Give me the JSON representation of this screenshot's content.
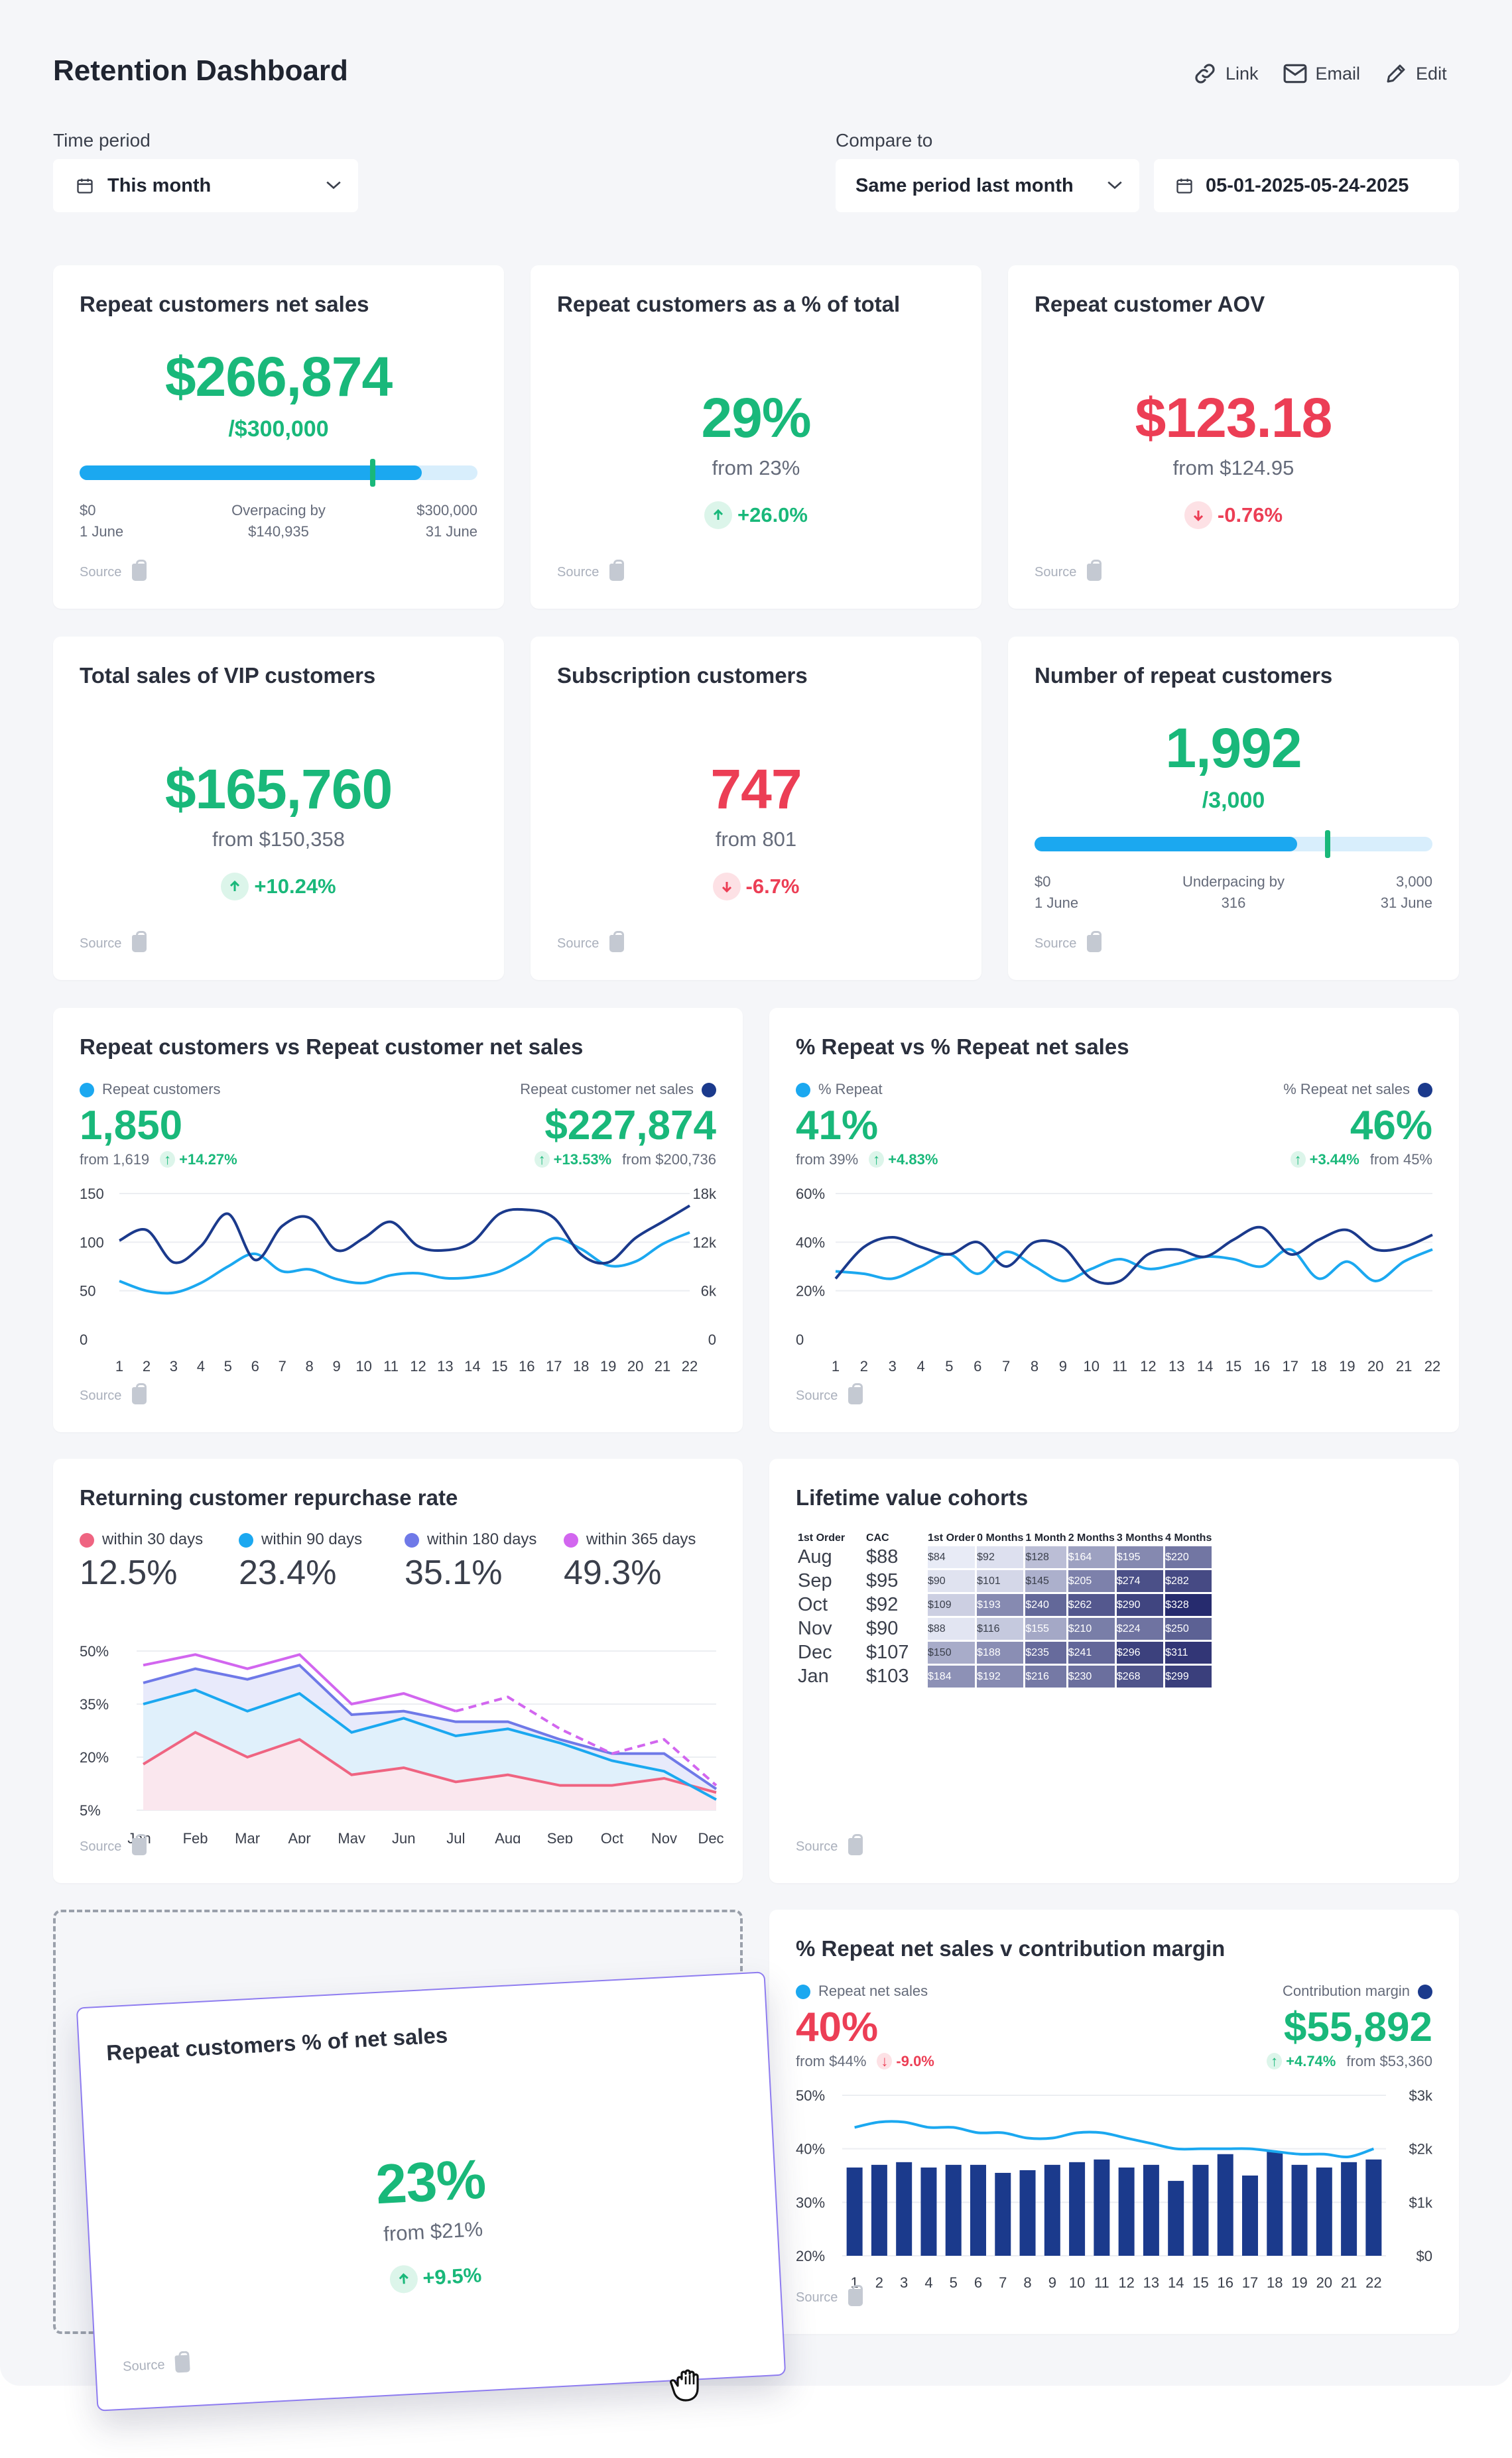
{
  "header": {
    "title": "Retention Dashboard",
    "actions": [
      {
        "label": "Link",
        "icon": "link-icon"
      },
      {
        "label": "Email",
        "icon": "mail-icon"
      },
      {
        "label": "Edit",
        "icon": "pen-icon"
      }
    ]
  },
  "filters": {
    "time_period_label": "Time period",
    "time_period_value": "This month",
    "compare_label": "Compare to",
    "compare_value": "Same period last month",
    "date_range": "05-01-2025-05-24-2025"
  },
  "source_label": "Source",
  "kpis": {
    "net_sales": {
      "title": "Repeat customers net sales",
      "value": "$266,874",
      "target": "/$300,000",
      "progress": 0.86,
      "marker": 0.73,
      "start_value": "$0",
      "start_date": "1 June",
      "pace_label": "Overpacing by",
      "pace_value": "$140,935",
      "end_value": "$300,000",
      "end_date": "31 June"
    },
    "pct_total": {
      "title": "Repeat customers as a % of total",
      "value": "29%",
      "from": "from 23%",
      "change": "+26.0%",
      "direction": "up"
    },
    "aov": {
      "title": "Repeat customer AOV",
      "value": "$123.18",
      "from": "from $124.95",
      "change": "-0.76%",
      "direction": "down"
    },
    "vip": {
      "title": "Total sales of VIP customers",
      "value": "$165,760",
      "from": "from $150,358",
      "change": "+10.24%",
      "direction": "up"
    },
    "subs": {
      "title": "Subscription customers",
      "value": "747",
      "from": "from 801",
      "change": "-6.7%",
      "direction": "down"
    },
    "repeat_count": {
      "title": "Number of repeat customers",
      "value": "1,992",
      "target": "/3,000",
      "progress": 0.66,
      "marker": 0.73,
      "start_value": "$0",
      "start_date": "1 June",
      "pace_label": "Underpacing by",
      "pace_value": "316",
      "end_value": "3,000",
      "end_date": "31 June"
    },
    "pct_net": {
      "title": "Repeat customers % of net sales",
      "value": "23%",
      "from": "from $21%",
      "change": "+9.5%",
      "direction": "up"
    }
  },
  "chart_data": [
    {
      "type": "line",
      "title": "Repeat customers vs Repeat customer net sales",
      "x": [
        1,
        2,
        3,
        4,
        5,
        6,
        7,
        8,
        9,
        10,
        11,
        12,
        13,
        14,
        15,
        16,
        17,
        18,
        19,
        20,
        21,
        22
      ],
      "left_ticks": [
        "150",
        "100",
        "50",
        "0"
      ],
      "right_ticks": [
        "18k",
        "12k",
        "6k",
        "0"
      ],
      "ylim": [
        0,
        150
      ],
      "y2lim": [
        0,
        18000
      ],
      "series": [
        {
          "name": "Repeat customers",
          "color": "#1ba8f0",
          "axis": "left",
          "values": [
            60,
            50,
            48,
            58,
            75,
            88,
            70,
            72,
            62,
            58,
            66,
            68,
            63,
            64,
            70,
            85,
            104,
            93,
            76,
            80,
            98,
            110
          ],
          "headline": "1,850",
          "from": "from 1,619",
          "change": "+14.27%"
        },
        {
          "name": "Repeat customer net sales",
          "color": "#1b3a8c",
          "axis": "right",
          "values": [
            12200,
            13500,
            9500,
            11500,
            15500,
            9800,
            14000,
            15000,
            11000,
            12500,
            14500,
            11500,
            11000,
            12000,
            15500,
            16000,
            15000,
            10500,
            9500,
            12500,
            14500,
            16500
          ],
          "headline": "$227,874",
          "from": "from $200,736",
          "change": "+13.53%"
        }
      ]
    },
    {
      "type": "line",
      "title": "% Repeat vs % Repeat net sales",
      "x": [
        1,
        2,
        3,
        4,
        5,
        6,
        7,
        8,
        9,
        10,
        11,
        12,
        13,
        14,
        15,
        16,
        17,
        18,
        19,
        20,
        21,
        22
      ],
      "left_ticks": [
        "60%",
        "40%",
        "20%",
        "0"
      ],
      "ylim": [
        0,
        60
      ],
      "series": [
        {
          "name": "% Repeat",
          "color": "#1ba8f0",
          "values": [
            28,
            27,
            25,
            30,
            35,
            27,
            36,
            30,
            24,
            29,
            33,
            29,
            31,
            34,
            33,
            30,
            37,
            25,
            32,
            24,
            32,
            37
          ],
          "headline": "41%",
          "from": "from 39%",
          "change": "+4.83%"
        },
        {
          "name": "% Repeat net sales",
          "color": "#1b3a8c",
          "values": [
            25,
            38,
            42,
            38,
            35,
            40,
            30,
            40,
            38,
            25,
            24,
            35,
            37,
            34,
            41,
            46,
            35,
            41,
            45,
            37,
            38,
            43
          ],
          "headline": "46%",
          "from": "from 45%",
          "change": "+3.44%"
        }
      ]
    },
    {
      "type": "area",
      "title": "Returning customer repurchase rate",
      "categories": [
        "Jan",
        "Feb",
        "Mar",
        "Apr",
        "May",
        "Jun",
        "Jul",
        "Aug",
        "Sep",
        "Oct",
        "Nov",
        "Dec"
      ],
      "y_ticks": [
        "50%",
        "35%",
        "20%",
        "5%"
      ],
      "ylim": [
        5,
        50
      ],
      "series": [
        {
          "name": "within 30 days",
          "color": "#ef6481",
          "headline": "12.5%",
          "values": [
            18,
            27,
            20,
            25,
            15,
            17,
            13,
            15,
            12,
            12,
            14,
            10
          ]
        },
        {
          "name": "within 90 days",
          "color": "#1ba8f0",
          "headline": "23.4%",
          "values": [
            35,
            39,
            33,
            38,
            27,
            31,
            26,
            28,
            24,
            19,
            16,
            8
          ]
        },
        {
          "name": "within 180 days",
          "color": "#6f79e8",
          "headline": "35.1%",
          "values": [
            41,
            45,
            42,
            46,
            32,
            33,
            30,
            30,
            25,
            21,
            21,
            11
          ]
        },
        {
          "name": "within 365 days",
          "color": "#d266ef",
          "headline": "49.3%",
          "values": [
            46,
            49,
            45,
            49,
            35,
            38,
            33,
            37,
            28,
            21,
            25,
            12
          ]
        }
      ]
    },
    {
      "type": "heatmap",
      "title": "Lifetime value cohorts",
      "row_header": "1st Order",
      "cac_header": "CAC",
      "columns": [
        "1st Order",
        "0 Months",
        "1 Month",
        "2 Months",
        "3 Months",
        "4 Months"
      ],
      "rows": [
        {
          "label": "Aug",
          "cac": "$88",
          "cells": [
            "$84",
            "$92",
            "$128",
            "$164",
            "$195",
            "$220"
          ]
        },
        {
          "label": "Sep",
          "cac": "$95",
          "cells": [
            "$90",
            "$101",
            "$145",
            "$205",
            "$274",
            "$282"
          ]
        },
        {
          "label": "Oct",
          "cac": "$92",
          "cells": [
            "$109",
            "$193",
            "$240",
            "$262",
            "$290",
            "$328"
          ]
        },
        {
          "label": "Nov",
          "cac": "$90",
          "cells": [
            "$88",
            "$116",
            "$155",
            "$210",
            "$224",
            "$250"
          ]
        },
        {
          "label": "Dec",
          "cac": "$107",
          "cells": [
            "$150",
            "$188",
            "$235",
            "$241",
            "$296",
            "$311"
          ]
        },
        {
          "label": "Jan",
          "cac": "$103",
          "cells": [
            "$184",
            "$192",
            "$216",
            "$230",
            "$268",
            "$299"
          ]
        }
      ]
    },
    {
      "type": "bar",
      "title": "% Repeat net sales v contribution margin",
      "x": [
        1,
        2,
        3,
        4,
        5,
        6,
        7,
        8,
        9,
        10,
        11,
        12,
        13,
        14,
        15,
        16,
        17,
        18,
        19,
        20,
        21,
        22
      ],
      "left_ticks": [
        "50%",
        "40%",
        "30%",
        "20%"
      ],
      "right_ticks": [
        "$3k",
        "$2k",
        "$1k",
        "$0"
      ],
      "series": [
        {
          "name": "Repeat net sales",
          "type": "line",
          "color": "#1ba8f0",
          "values": [
            44,
            45,
            45,
            44,
            44,
            43,
            43,
            42,
            42,
            43,
            43,
            42,
            41,
            40,
            40,
            40,
            40,
            39.5,
            39,
            39,
            38.5,
            40
          ],
          "headline": "40%",
          "from": "from $44%",
          "change": "-9.0%"
        },
        {
          "name": "Contribution margin",
          "type": "bar",
          "color": "#1b3a8c",
          "values": [
            1650,
            1700,
            1750,
            1650,
            1700,
            1700,
            1550,
            1600,
            1700,
            1750,
            1800,
            1650,
            1700,
            1400,
            1700,
            1900,
            1500,
            1950,
            1700,
            1650,
            1750,
            1800
          ],
          "headline": "$55,892",
          "from": "from $53,360",
          "change": "+4.74%"
        }
      ],
      "y2lim": [
        0,
        3000
      ]
    }
  ]
}
